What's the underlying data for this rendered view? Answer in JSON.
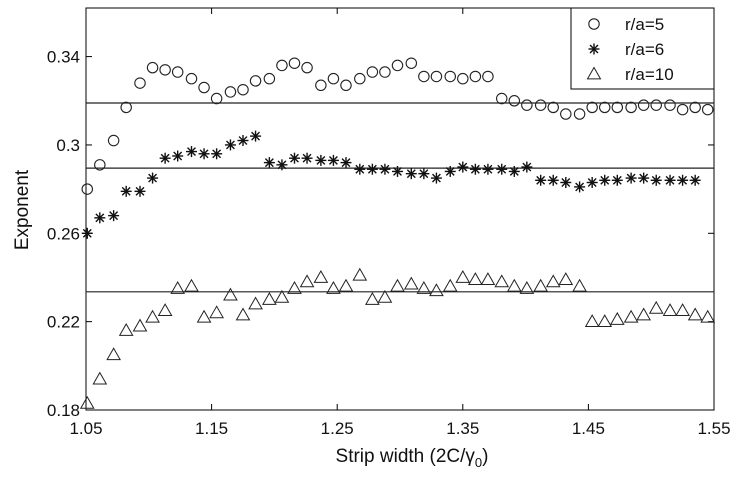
{
  "chart_data": {
    "type": "scatter",
    "xlabel": "Strip width (2C/γ",
    "xlabel_sub": "0",
    "xlabel_close": ")",
    "ylabel": "Exponent",
    "xlim": [
      1.05,
      1.55
    ],
    "ylim": [
      0.18,
      0.362
    ],
    "xticks": [
      1.05,
      1.15,
      1.25,
      1.35,
      1.45,
      1.55
    ],
    "xtick_labels": [
      "1.05",
      "1.15",
      "1.25",
      "1.35",
      "1.45",
      "1.55"
    ],
    "yticks": [
      0.18,
      0.22,
      0.26,
      0.3,
      0.34
    ],
    "ytick_labels": [
      "0.18",
      "0.22",
      "0.26",
      "0.3",
      "0.34"
    ],
    "grid": false,
    "legend_position": "top-right",
    "series": [
      {
        "name": "r/a=5",
        "marker": "circle",
        "reference_line": 0.319,
        "x": [
          1.051,
          1.061,
          1.072,
          1.082,
          1.093,
          1.103,
          1.113,
          1.123,
          1.134,
          1.144,
          1.154,
          1.165,
          1.175,
          1.185,
          1.196,
          1.206,
          1.216,
          1.226,
          1.237,
          1.247,
          1.257,
          1.268,
          1.278,
          1.288,
          1.298,
          1.309,
          1.319,
          1.329,
          1.34,
          1.35,
          1.36,
          1.37,
          1.381,
          1.391,
          1.401,
          1.412,
          1.422,
          1.432,
          1.443,
          1.453,
          1.463,
          1.473,
          1.484,
          1.494,
          1.504,
          1.515,
          1.525,
          1.535,
          1.545
        ],
        "y": [
          0.28,
          0.291,
          0.302,
          0.317,
          0.328,
          0.335,
          0.334,
          0.333,
          0.33,
          0.326,
          0.321,
          0.324,
          0.325,
          0.329,
          0.33,
          0.336,
          0.337,
          0.335,
          0.327,
          0.33,
          0.327,
          0.33,
          0.333,
          0.333,
          0.336,
          0.337,
          0.331,
          0.331,
          0.331,
          0.33,
          0.331,
          0.331,
          0.321,
          0.32,
          0.318,
          0.318,
          0.317,
          0.314,
          0.314,
          0.317,
          0.317,
          0.317,
          0.317,
          0.318,
          0.318,
          0.318,
          0.316,
          0.317,
          0.316
        ]
      },
      {
        "name": "r/a=6",
        "marker": "star",
        "reference_line": 0.2895,
        "x": [
          1.051,
          1.061,
          1.072,
          1.082,
          1.093,
          1.103,
          1.113,
          1.123,
          1.134,
          1.144,
          1.154,
          1.165,
          1.175,
          1.185,
          1.196,
          1.206,
          1.216,
          1.226,
          1.237,
          1.247,
          1.257,
          1.268,
          1.278,
          1.288,
          1.298,
          1.309,
          1.319,
          1.329,
          1.34,
          1.35,
          1.36,
          1.37,
          1.381,
          1.391,
          1.401,
          1.412,
          1.422,
          1.432,
          1.443,
          1.453,
          1.463,
          1.473,
          1.484,
          1.494,
          1.504,
          1.515,
          1.525,
          1.535
        ],
        "y": [
          0.26,
          0.267,
          0.268,
          0.279,
          0.279,
          0.285,
          0.294,
          0.295,
          0.297,
          0.296,
          0.296,
          0.3,
          0.302,
          0.304,
          0.292,
          0.291,
          0.294,
          0.294,
          0.293,
          0.293,
          0.292,
          0.289,
          0.289,
          0.289,
          0.288,
          0.287,
          0.287,
          0.285,
          0.288,
          0.29,
          0.289,
          0.289,
          0.289,
          0.288,
          0.29,
          0.284,
          0.284,
          0.283,
          0.281,
          0.283,
          0.284,
          0.284,
          0.285,
          0.285,
          0.284,
          0.284,
          0.284,
          0.284
        ]
      },
      {
        "name": "r/a=10",
        "marker": "triangle",
        "reference_line": 0.2335,
        "x": [
          1.051,
          1.061,
          1.072,
          1.082,
          1.093,
          1.103,
          1.113,
          1.123,
          1.134,
          1.144,
          1.154,
          1.165,
          1.175,
          1.185,
          1.196,
          1.206,
          1.216,
          1.226,
          1.237,
          1.247,
          1.257,
          1.268,
          1.278,
          1.288,
          1.298,
          1.309,
          1.319,
          1.329,
          1.34,
          1.35,
          1.36,
          1.37,
          1.381,
          1.391,
          1.401,
          1.412,
          1.422,
          1.432,
          1.443,
          1.453,
          1.463,
          1.473,
          1.484,
          1.494,
          1.504,
          1.515,
          1.525,
          1.535,
          1.545
        ],
        "y": [
          0.183,
          0.194,
          0.205,
          0.216,
          0.218,
          0.222,
          0.225,
          0.235,
          0.236,
          0.222,
          0.224,
          0.232,
          0.223,
          0.228,
          0.23,
          0.231,
          0.235,
          0.238,
          0.24,
          0.235,
          0.236,
          0.241,
          0.23,
          0.231,
          0.236,
          0.237,
          0.235,
          0.234,
          0.236,
          0.24,
          0.239,
          0.239,
          0.238,
          0.236,
          0.235,
          0.236,
          0.238,
          0.239,
          0.236,
          0.22,
          0.22,
          0.221,
          0.222,
          0.223,
          0.226,
          0.225,
          0.225,
          0.223,
          0.222
        ]
      }
    ]
  }
}
